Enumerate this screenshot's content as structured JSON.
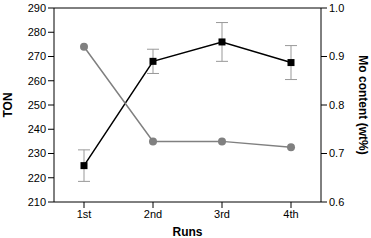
{
  "chart_data": {
    "type": "line",
    "x_label": "Runs",
    "y_label": "TON",
    "y2_label": "Mo content (wt%)",
    "categories": [
      "1st",
      "2nd",
      "3rd",
      "4th"
    ],
    "ylim": [
      210,
      290
    ],
    "yticks": [
      210,
      220,
      230,
      240,
      250,
      260,
      270,
      280,
      290
    ],
    "y2lim": [
      0.6,
      1.0
    ],
    "y2ticks": [
      {
        "value": 0.6,
        "label": "0.6"
      },
      {
        "value": 0.7,
        "label": "0.7"
      },
      {
        "value": 0.8,
        "label": "0.8"
      },
      {
        "value": 0.9,
        "label": "0.9"
      },
      {
        "value": 1.0,
        "label": "1.0"
      }
    ],
    "grid": false,
    "series": [
      {
        "name": "TON",
        "color": "#000000",
        "marker": "square",
        "line_style": "solid",
        "values": [
          225,
          268,
          276,
          267.5
        ],
        "error": [
          6.5,
          5,
          8,
          7
        ]
      },
      {
        "name": "Mo content",
        "color": "#808080",
        "marker": "circle",
        "line_style": "solid",
        "axis": "y2",
        "values": [
          0.92,
          0.725,
          0.725,
          0.713
        ]
      }
    ]
  }
}
